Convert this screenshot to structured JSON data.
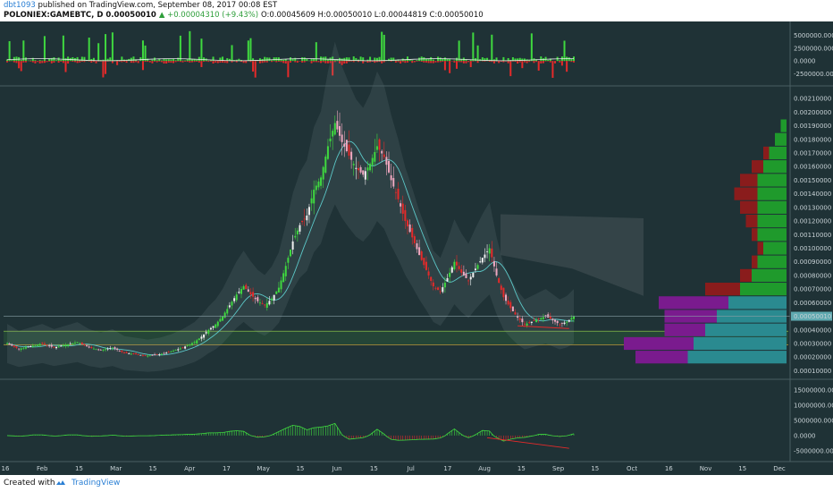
{
  "header": {
    "author": "dbt1093",
    "published": "published on TradingView.com, September 08, 2017 00:08 EST",
    "symbol": "POLONIEX:GAMEBTC, D",
    "last_price": "0.00050010",
    "change": "▲ +0.00004310 (+9.43%)",
    "ohlc": "O:0.00045609 H:0.00050010 L:0.00044819 C:0.00050010"
  },
  "footer": {
    "created_with": "Created with",
    "brand": "TradingView",
    "logo_icon": "tradingview-logo-icon"
  },
  "colors": {
    "background": "#1f3236",
    "up": "#3fd83f",
    "down": "#e52a2a",
    "accent_teal": "#5cc8c8",
    "volume_profile_green": "#1f9a2c",
    "volume_profile_red": "#8a1c1c",
    "volume_profile_purple": "#7a1b8e",
    "volume_profile_teal": "#2a8a90"
  },
  "chart_data": {
    "type": "candlestick",
    "symbol": "POLONIEX:GAMEBTC",
    "interval": "D",
    "x_ticks": [
      "16",
      "Feb",
      "15",
      "Mar",
      "15",
      "Apr",
      "17",
      "May",
      "15",
      "Jun",
      "15",
      "Jul",
      "17",
      "Aug",
      "15",
      "Sep",
      "15",
      "Oct",
      "16",
      "Nov",
      "15",
      "Dec"
    ],
    "price_panel": {
      "y_ticks": [
        "0.00210000",
        "0.00200000",
        "0.00190000",
        "0.00180000",
        "0.00170000",
        "0.00160000",
        "0.00150000",
        "0.00140000",
        "0.00130000",
        "0.00120000",
        "0.00110000",
        "0.00100000",
        "0.00090000",
        "0.00080000",
        "0.00070000",
        "0.00060000",
        "0.00050010",
        "0.00040000",
        "0.00030000",
        "0.00020000",
        "0.00010000"
      ],
      "ylim": [
        5e-05,
        0.00218
      ],
      "last_price_label": "0.00050010",
      "horizontal_levels": [
        0.00039,
        0.00029
      ],
      "close_path": [
        [
          0,
          0.0003
        ],
        [
          5,
          0.00026
        ],
        [
          10,
          0.00028
        ],
        [
          15,
          0.0003
        ],
        [
          20,
          0.00027
        ],
        [
          25,
          0.00029
        ],
        [
          30,
          0.00031
        ],
        [
          35,
          0.00027
        ],
        [
          40,
          0.00025
        ],
        [
          45,
          0.00027
        ],
        [
          50,
          0.00023
        ],
        [
          55,
          0.00022
        ],
        [
          60,
          0.00021
        ],
        [
          65,
          0.00022
        ],
        [
          70,
          0.00024
        ],
        [
          75,
          0.00027
        ],
        [
          80,
          0.00031
        ],
        [
          83,
          0.00035
        ],
        [
          86,
          0.0004
        ],
        [
          89,
          0.00044
        ],
        [
          92,
          0.0005
        ],
        [
          95,
          0.00058
        ],
        [
          98,
          0.00066
        ],
        [
          101,
          0.00072
        ],
        [
          104,
          0.00066
        ],
        [
          107,
          0.00061
        ],
        [
          110,
          0.00058
        ],
        [
          113,
          0.00063
        ],
        [
          116,
          0.00071
        ],
        [
          119,
          0.00087
        ],
        [
          122,
          0.00105
        ],
        [
          125,
          0.00117
        ],
        [
          128,
          0.00124
        ],
        [
          131,
          0.00143
        ],
        [
          134,
          0.00152
        ],
        [
          137,
          0.00175
        ],
        [
          140,
          0.00192
        ],
        [
          143,
          0.00178
        ],
        [
          146,
          0.00168
        ],
        [
          149,
          0.00159
        ],
        [
          152,
          0.00154
        ],
        [
          155,
          0.00162
        ],
        [
          158,
          0.00175
        ],
        [
          161,
          0.00167
        ],
        [
          164,
          0.0015
        ],
        [
          167,
          0.00136
        ],
        [
          170,
          0.0012
        ],
        [
          173,
          0.00108
        ],
        [
          176,
          0.00095
        ],
        [
          179,
          0.00084
        ],
        [
          182,
          0.00072
        ],
        [
          185,
          0.00068
        ],
        [
          188,
          0.00078
        ],
        [
          191,
          0.0009
        ],
        [
          194,
          0.00082
        ],
        [
          197,
          0.00076
        ],
        [
          200,
          0.00085
        ],
        [
          203,
          0.00093
        ],
        [
          206,
          0.001
        ],
        [
          209,
          0.0008
        ],
        [
          212,
          0.00064
        ],
        [
          215,
          0.00056
        ],
        [
          218,
          0.00049
        ],
        [
          221,
          0.00044
        ],
        [
          224,
          0.00046
        ],
        [
          227,
          0.00048
        ],
        [
          230,
          0.0005
        ],
        [
          233,
          0.00047
        ],
        [
          236,
          0.00044
        ],
        [
          239,
          0.00046
        ],
        [
          242,
          0.0005
        ]
      ],
      "volume_profile": [
        {
          "price": 0.0019,
          "buy": 1,
          "sell": 0
        },
        {
          "price": 0.0018,
          "buy": 2,
          "sell": 0
        },
        {
          "price": 0.0017,
          "buy": 3,
          "sell": 1
        },
        {
          "price": 0.0016,
          "buy": 4,
          "sell": 2
        },
        {
          "price": 0.0015,
          "buy": 5,
          "sell": 3
        },
        {
          "price": 0.0014,
          "buy": 5,
          "sell": 4
        },
        {
          "price": 0.0013,
          "buy": 5,
          "sell": 3
        },
        {
          "price": 0.0012,
          "buy": 5,
          "sell": 2
        },
        {
          "price": 0.0011,
          "buy": 5,
          "sell": 1
        },
        {
          "price": 0.001,
          "buy": 4,
          "sell": 1
        },
        {
          "price": 0.0009,
          "buy": 5,
          "sell": 1
        },
        {
          "price": 0.0008,
          "buy": 6,
          "sell": 2
        },
        {
          "price": 0.0007,
          "buy": 8,
          "sell": 6
        },
        {
          "price": 0.0006,
          "buy": 10,
          "sell": 12
        },
        {
          "price": 0.0005,
          "buy": 12,
          "sell": 9
        },
        {
          "price": 0.0004,
          "buy": 14,
          "sell": 7
        },
        {
          "price": 0.0003,
          "buy": 16,
          "sell": 12
        },
        {
          "price": 0.0002,
          "buy": 17,
          "sell": 9
        }
      ]
    },
    "volume_panel": {
      "y_ticks": [
        "5000000.0000",
        "2500000.0000",
        "0.0000",
        "-2500000.0000"
      ],
      "ylim": [
        -4500000,
        7000000
      ]
    },
    "oscillator_panel": {
      "y_ticks": [
        "15000000.0000",
        "10000000.0000",
        "5000000.0000",
        "0.0000",
        "-5000000.0000"
      ],
      "ylim": [
        -8000000,
        18000000
      ]
    }
  }
}
